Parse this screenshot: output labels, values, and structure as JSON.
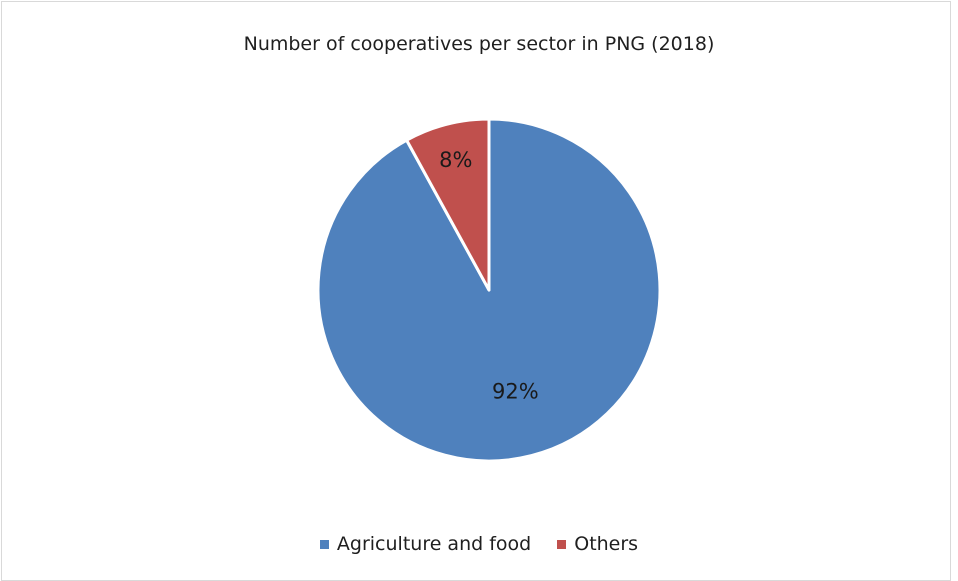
{
  "chart_data": {
    "type": "pie",
    "title": "Number of cooperatives per sector in PNG (2018)",
    "categories": [
      "Agriculture and food",
      "Others"
    ],
    "values": [
      92,
      8
    ],
    "labels": [
      "92%",
      "8%"
    ],
    "colors": [
      "#4F81BD",
      "#C0504D"
    ],
    "start_angle": "12 o'clock, clockwise",
    "legend_position": "bottom"
  },
  "legend": {
    "items": [
      {
        "label": "Agriculture and food",
        "color": "#4F81BD"
      },
      {
        "label": "Others",
        "color": "#C0504D"
      }
    ]
  }
}
